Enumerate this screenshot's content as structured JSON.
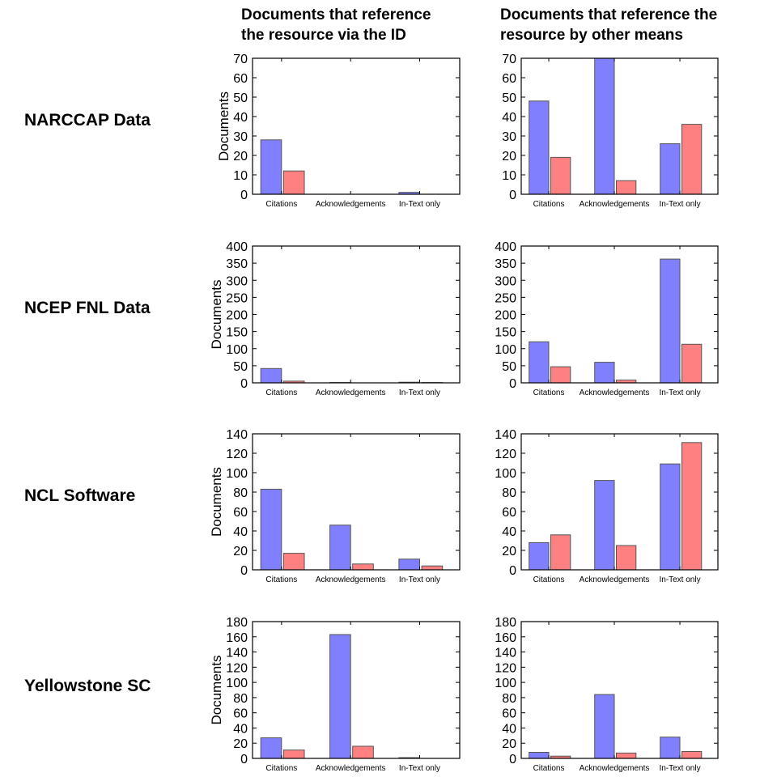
{
  "columns": {
    "left": [
      "Documents that reference",
      "the resource via the ID"
    ],
    "right": [
      "Documents that reference the",
      "resource by other means"
    ]
  },
  "rows": [
    "NARCCAP Data",
    "NCEP FNL Data",
    "NCL Software",
    "Yellowstone SC"
  ],
  "colors": {
    "blue": "#8080ff",
    "red": "#ff8080",
    "edge": "#555555"
  },
  "chart_data": [
    {
      "type": "bar",
      "row": "NARCCAP Data",
      "column": "via ID",
      "categories": [
        "Citations",
        "Acknowledgements",
        "In-Text only"
      ],
      "ylabel": "Documents",
      "ylim": [
        0,
        70
      ],
      "yticks": [
        0,
        10,
        20,
        30,
        40,
        50,
        60,
        70
      ],
      "series": [
        {
          "color": "blue",
          "values": [
            28,
            0,
            1
          ]
        },
        {
          "color": "red",
          "values": [
            12,
            0,
            0
          ]
        }
      ]
    },
    {
      "type": "bar",
      "row": "NARCCAP Data",
      "column": "other means",
      "categories": [
        "Citations",
        "Acknowledgements",
        "In-Text only"
      ],
      "ylabel": "",
      "ylim": [
        0,
        70
      ],
      "yticks": [
        0,
        10,
        20,
        30,
        40,
        50,
        60,
        70
      ],
      "series": [
        {
          "color": "blue",
          "values": [
            48,
            70,
            26
          ]
        },
        {
          "color": "red",
          "values": [
            19,
            7,
            36
          ]
        }
      ]
    },
    {
      "type": "bar",
      "row": "NCEP FNL Data",
      "column": "via ID",
      "categories": [
        "Citations",
        "Acknowledgements",
        "In-Text only"
      ],
      "ylabel": "Documents",
      "ylim": [
        0,
        400
      ],
      "yticks": [
        0,
        50,
        100,
        150,
        200,
        250,
        300,
        350,
        400
      ],
      "series": [
        {
          "color": "blue",
          "values": [
            42,
            1,
            2
          ]
        },
        {
          "color": "red",
          "values": [
            5,
            0,
            1
          ]
        }
      ]
    },
    {
      "type": "bar",
      "row": "NCEP FNL Data",
      "column": "other means",
      "categories": [
        "Citations",
        "Acknowledgements",
        "In-Text only"
      ],
      "ylabel": "",
      "ylim": [
        0,
        400
      ],
      "yticks": [
        0,
        50,
        100,
        150,
        200,
        250,
        300,
        350,
        400
      ],
      "series": [
        {
          "color": "blue",
          "values": [
            120,
            60,
            362
          ]
        },
        {
          "color": "red",
          "values": [
            47,
            8,
            113
          ]
        }
      ]
    },
    {
      "type": "bar",
      "row": "NCL Software",
      "column": "via ID",
      "categories": [
        "Citations",
        "Acknowledgements",
        "In-Text only"
      ],
      "ylabel": "Documents",
      "ylim": [
        0,
        140
      ],
      "yticks": [
        0,
        20,
        40,
        60,
        80,
        100,
        120,
        140
      ],
      "series": [
        {
          "color": "blue",
          "values": [
            83,
            46,
            11
          ]
        },
        {
          "color": "red",
          "values": [
            17,
            6,
            4
          ]
        }
      ]
    },
    {
      "type": "bar",
      "row": "NCL Software",
      "column": "other means",
      "categories": [
        "Citations",
        "Acknowledgements",
        "In-Text only"
      ],
      "ylabel": "",
      "ylim": [
        0,
        140
      ],
      "yticks": [
        0,
        20,
        40,
        60,
        80,
        100,
        120,
        140
      ],
      "series": [
        {
          "color": "blue",
          "values": [
            28,
            92,
            109
          ]
        },
        {
          "color": "red",
          "values": [
            36,
            25,
            131
          ]
        }
      ]
    },
    {
      "type": "bar",
      "row": "Yellowstone SC",
      "column": "via ID",
      "categories": [
        "Citations",
        "Acknowledgements",
        "In-Text only"
      ],
      "ylabel": "Documents",
      "ylim": [
        0,
        180
      ],
      "yticks": [
        0,
        20,
        40,
        60,
        80,
        100,
        120,
        140,
        160,
        180
      ],
      "series": [
        {
          "color": "blue",
          "values": [
            27,
            163,
            1
          ]
        },
        {
          "color": "red",
          "values": [
            11,
            16,
            0
          ]
        }
      ]
    },
    {
      "type": "bar",
      "row": "Yellowstone SC",
      "column": "other means",
      "categories": [
        "Citations",
        "Acknowledgements",
        "In-Text only"
      ],
      "ylabel": "",
      "ylim": [
        0,
        180
      ],
      "yticks": [
        0,
        20,
        40,
        60,
        80,
        100,
        120,
        140,
        160,
        180
      ],
      "series": [
        {
          "color": "blue",
          "values": [
            8,
            84,
            28
          ]
        },
        {
          "color": "red",
          "values": [
            3,
            7,
            9
          ]
        }
      ]
    }
  ]
}
